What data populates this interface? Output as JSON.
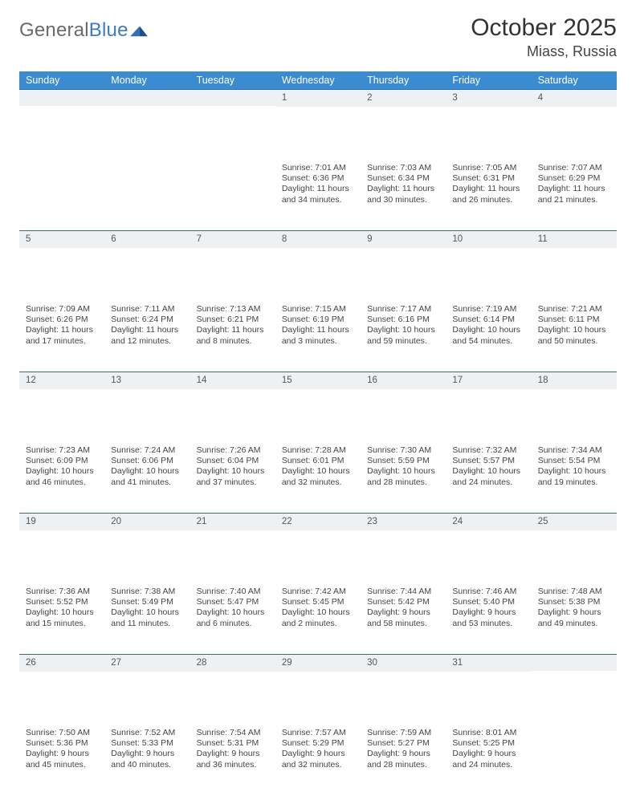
{
  "header": {
    "logo_general": "General",
    "logo_blue": "Blue",
    "title": "October 2025",
    "location": "Miass, Russia"
  },
  "colors": {
    "header_bg": "#3b8bd0",
    "header_text": "#ffffff",
    "row_border": "#2f6fa8",
    "daynum_bg": "#eef1f3",
    "body_text": "#444444",
    "logo_gray": "#6a6a6a",
    "logo_blue": "#3b7bbf"
  },
  "weekdays": [
    "Sunday",
    "Monday",
    "Tuesday",
    "Wednesday",
    "Thursday",
    "Friday",
    "Saturday"
  ],
  "weeks": [
    [
      null,
      null,
      null,
      {
        "n": "1",
        "sr": "Sunrise: 7:01 AM",
        "ss": "Sunset: 6:36 PM",
        "d1": "Daylight: 11 hours",
        "d2": "and 34 minutes."
      },
      {
        "n": "2",
        "sr": "Sunrise: 7:03 AM",
        "ss": "Sunset: 6:34 PM",
        "d1": "Daylight: 11 hours",
        "d2": "and 30 minutes."
      },
      {
        "n": "3",
        "sr": "Sunrise: 7:05 AM",
        "ss": "Sunset: 6:31 PM",
        "d1": "Daylight: 11 hours",
        "d2": "and 26 minutes."
      },
      {
        "n": "4",
        "sr": "Sunrise: 7:07 AM",
        "ss": "Sunset: 6:29 PM",
        "d1": "Daylight: 11 hours",
        "d2": "and 21 minutes."
      }
    ],
    [
      {
        "n": "5",
        "sr": "Sunrise: 7:09 AM",
        "ss": "Sunset: 6:26 PM",
        "d1": "Daylight: 11 hours",
        "d2": "and 17 minutes."
      },
      {
        "n": "6",
        "sr": "Sunrise: 7:11 AM",
        "ss": "Sunset: 6:24 PM",
        "d1": "Daylight: 11 hours",
        "d2": "and 12 minutes."
      },
      {
        "n": "7",
        "sr": "Sunrise: 7:13 AM",
        "ss": "Sunset: 6:21 PM",
        "d1": "Daylight: 11 hours",
        "d2": "and 8 minutes."
      },
      {
        "n": "8",
        "sr": "Sunrise: 7:15 AM",
        "ss": "Sunset: 6:19 PM",
        "d1": "Daylight: 11 hours",
        "d2": "and 3 minutes."
      },
      {
        "n": "9",
        "sr": "Sunrise: 7:17 AM",
        "ss": "Sunset: 6:16 PM",
        "d1": "Daylight: 10 hours",
        "d2": "and 59 minutes."
      },
      {
        "n": "10",
        "sr": "Sunrise: 7:19 AM",
        "ss": "Sunset: 6:14 PM",
        "d1": "Daylight: 10 hours",
        "d2": "and 54 minutes."
      },
      {
        "n": "11",
        "sr": "Sunrise: 7:21 AM",
        "ss": "Sunset: 6:11 PM",
        "d1": "Daylight: 10 hours",
        "d2": "and 50 minutes."
      }
    ],
    [
      {
        "n": "12",
        "sr": "Sunrise: 7:23 AM",
        "ss": "Sunset: 6:09 PM",
        "d1": "Daylight: 10 hours",
        "d2": "and 46 minutes."
      },
      {
        "n": "13",
        "sr": "Sunrise: 7:24 AM",
        "ss": "Sunset: 6:06 PM",
        "d1": "Daylight: 10 hours",
        "d2": "and 41 minutes."
      },
      {
        "n": "14",
        "sr": "Sunrise: 7:26 AM",
        "ss": "Sunset: 6:04 PM",
        "d1": "Daylight: 10 hours",
        "d2": "and 37 minutes."
      },
      {
        "n": "15",
        "sr": "Sunrise: 7:28 AM",
        "ss": "Sunset: 6:01 PM",
        "d1": "Daylight: 10 hours",
        "d2": "and 32 minutes."
      },
      {
        "n": "16",
        "sr": "Sunrise: 7:30 AM",
        "ss": "Sunset: 5:59 PM",
        "d1": "Daylight: 10 hours",
        "d2": "and 28 minutes."
      },
      {
        "n": "17",
        "sr": "Sunrise: 7:32 AM",
        "ss": "Sunset: 5:57 PM",
        "d1": "Daylight: 10 hours",
        "d2": "and 24 minutes."
      },
      {
        "n": "18",
        "sr": "Sunrise: 7:34 AM",
        "ss": "Sunset: 5:54 PM",
        "d1": "Daylight: 10 hours",
        "d2": "and 19 minutes."
      }
    ],
    [
      {
        "n": "19",
        "sr": "Sunrise: 7:36 AM",
        "ss": "Sunset: 5:52 PM",
        "d1": "Daylight: 10 hours",
        "d2": "and 15 minutes."
      },
      {
        "n": "20",
        "sr": "Sunrise: 7:38 AM",
        "ss": "Sunset: 5:49 PM",
        "d1": "Daylight: 10 hours",
        "d2": "and 11 minutes."
      },
      {
        "n": "21",
        "sr": "Sunrise: 7:40 AM",
        "ss": "Sunset: 5:47 PM",
        "d1": "Daylight: 10 hours",
        "d2": "and 6 minutes."
      },
      {
        "n": "22",
        "sr": "Sunrise: 7:42 AM",
        "ss": "Sunset: 5:45 PM",
        "d1": "Daylight: 10 hours",
        "d2": "and 2 minutes."
      },
      {
        "n": "23",
        "sr": "Sunrise: 7:44 AM",
        "ss": "Sunset: 5:42 PM",
        "d1": "Daylight: 9 hours",
        "d2": "and 58 minutes."
      },
      {
        "n": "24",
        "sr": "Sunrise: 7:46 AM",
        "ss": "Sunset: 5:40 PM",
        "d1": "Daylight: 9 hours",
        "d2": "and 53 minutes."
      },
      {
        "n": "25",
        "sr": "Sunrise: 7:48 AM",
        "ss": "Sunset: 5:38 PM",
        "d1": "Daylight: 9 hours",
        "d2": "and 49 minutes."
      }
    ],
    [
      {
        "n": "26",
        "sr": "Sunrise: 7:50 AM",
        "ss": "Sunset: 5:36 PM",
        "d1": "Daylight: 9 hours",
        "d2": "and 45 minutes."
      },
      {
        "n": "27",
        "sr": "Sunrise: 7:52 AM",
        "ss": "Sunset: 5:33 PM",
        "d1": "Daylight: 9 hours",
        "d2": "and 40 minutes."
      },
      {
        "n": "28",
        "sr": "Sunrise: 7:54 AM",
        "ss": "Sunset: 5:31 PM",
        "d1": "Daylight: 9 hours",
        "d2": "and 36 minutes."
      },
      {
        "n": "29",
        "sr": "Sunrise: 7:57 AM",
        "ss": "Sunset: 5:29 PM",
        "d1": "Daylight: 9 hours",
        "d2": "and 32 minutes."
      },
      {
        "n": "30",
        "sr": "Sunrise: 7:59 AM",
        "ss": "Sunset: 5:27 PM",
        "d1": "Daylight: 9 hours",
        "d2": "and 28 minutes."
      },
      {
        "n": "31",
        "sr": "Sunrise: 8:01 AM",
        "ss": "Sunset: 5:25 PM",
        "d1": "Daylight: 9 hours",
        "d2": "and 24 minutes."
      },
      null
    ]
  ]
}
